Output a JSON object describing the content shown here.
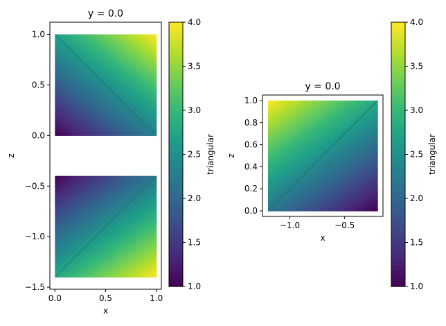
{
  "colormap": "viridis",
  "chart_data": [
    {
      "type": "heatmap",
      "title": "y = 0.0",
      "xlabel": "x",
      "ylabel": "z",
      "xlim": [
        -0.05,
        1.05
      ],
      "ylim": [
        -1.52,
        1.12
      ],
      "xticks": [
        "0.0",
        "0.5",
        "1.0"
      ],
      "xtick_values": [
        0,
        0.5,
        1
      ],
      "yticks": [
        "−1.5",
        "−1.0",
        "−0.5",
        "0.0",
        "0.5",
        "1.0"
      ],
      "ytick_values": [
        -1.5,
        -1,
        -0.5,
        0,
        0.5,
        1
      ],
      "patches": [
        {
          "x": [
            0,
            1
          ],
          "z": [
            0,
            1
          ],
          "diagonal": "tl-br",
          "corners": {
            "tl": 2.7,
            "tr": 4.0,
            "bl": 1.0,
            "br": 2.3
          }
        },
        {
          "x": [
            0,
            1
          ],
          "z": [
            -1.4,
            -0.4
          ],
          "diagonal": "bl-tr",
          "corners": {
            "tl": 1.0,
            "tr": 2.2,
            "bl": 2.8,
            "br": 4.0
          }
        }
      ],
      "colorbar": {
        "label": "triangular",
        "range": [
          1,
          4
        ],
        "ticks": [
          "1.0",
          "1.5",
          "2.0",
          "2.5",
          "3.0",
          "3.5",
          "4.0"
        ],
        "tick_values": [
          1,
          1.5,
          2,
          2.5,
          3,
          3.5,
          4
        ]
      }
    },
    {
      "type": "heatmap",
      "title": "y = 0.0",
      "xlabel": "x",
      "ylabel": "z",
      "xlim": [
        -1.25,
        -0.15
      ],
      "ylim": [
        -0.05,
        1.05
      ],
      "xticks": [
        "−1.0",
        "−0.5"
      ],
      "xtick_values": [
        -1,
        -0.5
      ],
      "yticks": [
        "0.0",
        "0.2",
        "0.4",
        "0.6",
        "0.8",
        "1.0"
      ],
      "ytick_values": [
        0,
        0.2,
        0.4,
        0.6,
        0.8,
        1
      ],
      "patches": [
        {
          "x": [
            -1.2,
            -0.2
          ],
          "z": [
            0,
            1
          ],
          "diagonal": "bl-tr",
          "corners": {
            "tl": 4.0,
            "tr": 2.8,
            "bl": 2.2,
            "br": 1.0
          }
        }
      ],
      "colorbar": {
        "label": "triangular",
        "range": [
          1,
          4
        ],
        "ticks": [
          "1.0",
          "1.5",
          "2.0",
          "2.5",
          "3.0",
          "3.5",
          "4.0"
        ],
        "tick_values": [
          1,
          1.5,
          2,
          2.5,
          3,
          3.5,
          4
        ]
      }
    }
  ]
}
